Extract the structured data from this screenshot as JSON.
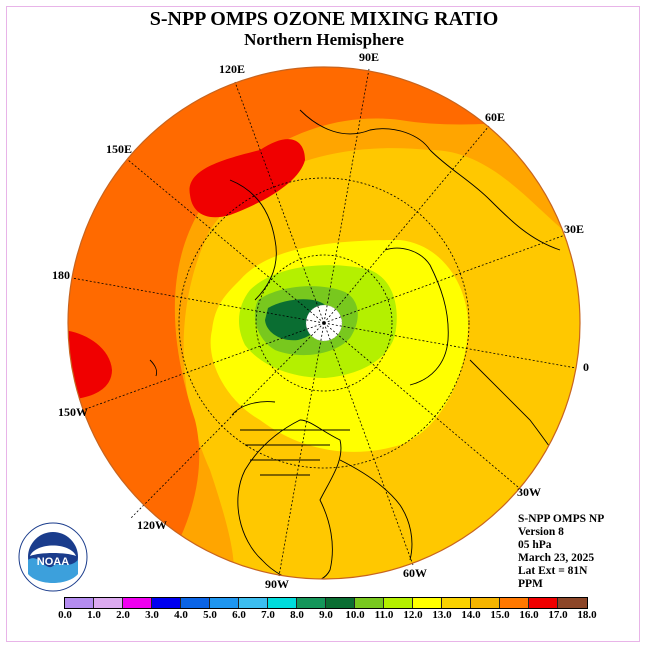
{
  "title": "S-NPP OMPS OZONE MIXING RATIO",
  "subtitle": "Northern Hemisphere",
  "longitude_labels": {
    "lon_90E": "90E",
    "lon_60E": "60E",
    "lon_30E": "30E",
    "lon_0": "0",
    "lon_30W": "30W",
    "lon_60W": "60W",
    "lon_90W": "90W",
    "lon_120W": "120W",
    "lon_150W": "150W",
    "lon_180": "180",
    "lon_150E": "150E",
    "lon_120E": "120E"
  },
  "info": {
    "product": "S-NPP OMPS NP",
    "version": "Version 8",
    "level": "05 hPa",
    "date": "March 23, 2025",
    "lat_ext": "Lat Ext = 81N",
    "unit": "PPM"
  },
  "colorbar": {
    "ticks": [
      "0.0",
      "1.0",
      "2.0",
      "3.0",
      "4.0",
      "5.0",
      "6.0",
      "7.0",
      "8.0",
      "9.0",
      "10.0",
      "11.0",
      "12.0",
      "13.0",
      "14.0",
      "15.0",
      "16.0",
      "17.0",
      "18.0"
    ],
    "colors": [
      "#b48cf0",
      "#dcaaf0",
      "#f000f0",
      "#0000f0",
      "#0a64e6",
      "#1e96f0",
      "#3cbef0",
      "#00dcdc",
      "#14965a",
      "#0a6e32",
      "#78c81e",
      "#b4f000",
      "#ffff00",
      "#fad200",
      "#f5b400",
      "#ff7800",
      "#f00000",
      "#8c4628"
    ]
  },
  "logo": {
    "text": "NOAA",
    "ring_text": "NATIONAL OCEANIC AND ATMOSPHERIC ADMINISTRATION · U.S. DEPARTMENT OF COMMERCE"
  },
  "colors": {
    "orange_red": "#ff6a00",
    "orange": "#ffa500",
    "light_orange": "#ffc800",
    "yellow": "#ffff00",
    "green": "#0a6e32"
  }
}
